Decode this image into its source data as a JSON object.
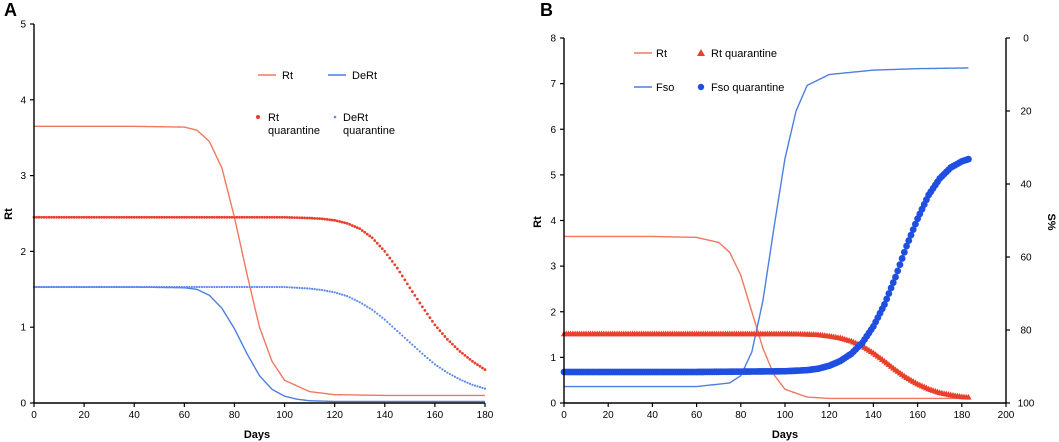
{
  "colors": {
    "red": "#f07860",
    "blue": "#4c7fe0",
    "red_dot": "#e8402a",
    "blue_dot": "#1f4fe0",
    "blue_small": "#5a8ae8"
  },
  "chart_data": [
    {
      "panel": "A",
      "type": "line",
      "xlabel": "Days",
      "ylabel": "Rt",
      "xlim": [
        0,
        180
      ],
      "ylim": [
        0,
        5
      ],
      "xticks": [
        0,
        20,
        40,
        60,
        80,
        100,
        120,
        140,
        160,
        180
      ],
      "yticks": [
        0,
        1,
        2,
        3,
        4,
        5
      ],
      "legend_position": "top-right",
      "series": [
        {
          "name": "Rt",
          "style": "line",
          "color": "red",
          "x": [
            0,
            40,
            60,
            65,
            70,
            75,
            80,
            85,
            90,
            95,
            100,
            110,
            120,
            140,
            160,
            180
          ],
          "y": [
            3.65,
            3.65,
            3.64,
            3.6,
            3.45,
            3.1,
            2.45,
            1.7,
            1.0,
            0.55,
            0.3,
            0.15,
            0.11,
            0.1,
            0.1,
            0.1
          ]
        },
        {
          "name": "DeRt",
          "style": "line",
          "color": "blue",
          "x": [
            0,
            40,
            60,
            65,
            70,
            75,
            80,
            85,
            90,
            95,
            100,
            105,
            110,
            120,
            140,
            160,
            180
          ],
          "y": [
            1.53,
            1.53,
            1.52,
            1.5,
            1.42,
            1.25,
            0.98,
            0.65,
            0.36,
            0.18,
            0.09,
            0.05,
            0.03,
            0.02,
            0.02,
            0.02,
            0.02
          ]
        },
        {
          "name": "Rt quarantine",
          "legend_label": [
            "Rt",
            "quarantine"
          ],
          "style": "dots",
          "color": "red_dot",
          "x": [
            0,
            60,
            100,
            110,
            115,
            120,
            125,
            130,
            135,
            140,
            145,
            150,
            155,
            160,
            165,
            170,
            175,
            180
          ],
          "y": [
            2.45,
            2.45,
            2.45,
            2.44,
            2.43,
            2.41,
            2.37,
            2.3,
            2.18,
            2.0,
            1.78,
            1.52,
            1.27,
            1.03,
            0.84,
            0.68,
            0.55,
            0.44
          ]
        },
        {
          "name": "DeRt quarantine",
          "legend_label": [
            "DeRt",
            "quarantine"
          ],
          "style": "dots",
          "color": "blue_small",
          "x": [
            0,
            80,
            100,
            105,
            110,
            115,
            120,
            125,
            130,
            135,
            140,
            145,
            150,
            155,
            160,
            165,
            170,
            175,
            180
          ],
          "y": [
            1.53,
            1.53,
            1.53,
            1.52,
            1.51,
            1.49,
            1.46,
            1.41,
            1.33,
            1.23,
            1.1,
            0.95,
            0.8,
            0.65,
            0.51,
            0.4,
            0.31,
            0.24,
            0.19
          ]
        }
      ]
    },
    {
      "panel": "B",
      "type": "line",
      "xlabel": "Days",
      "ylabel": "Rt",
      "y2label": "S%",
      "xlim": [
        0,
        200
      ],
      "ylim": [
        0,
        8
      ],
      "y2lim": [
        0,
        100
      ],
      "y2_inverted": true,
      "xticks": [
        0,
        20,
        40,
        60,
        80,
        100,
        120,
        140,
        160,
        180,
        200
      ],
      "yticks": [
        0,
        1,
        2,
        3,
        4,
        5,
        6,
        7,
        8
      ],
      "y2ticks": [
        0,
        20,
        40,
        60,
        80,
        100
      ],
      "legend_position": "top-left",
      "series": [
        {
          "name": "Rt",
          "style": "line",
          "color": "red",
          "axis": "left",
          "x": [
            0,
            40,
            60,
            70,
            75,
            80,
            85,
            90,
            95,
            100,
            110,
            120,
            140,
            160,
            183
          ],
          "y": [
            3.65,
            3.65,
            3.63,
            3.52,
            3.3,
            2.8,
            2.0,
            1.2,
            0.62,
            0.3,
            0.13,
            0.1,
            0.1,
            0.1,
            0.1
          ]
        },
        {
          "name": "Fso",
          "style": "line",
          "color": "blue",
          "axis": "right",
          "x": [
            0,
            60,
            75,
            80,
            85,
            90,
            95,
            100,
            105,
            110,
            120,
            140,
            160,
            183
          ],
          "y": [
            95.5,
            95.5,
            94.5,
            92.5,
            86,
            72,
            52,
            33,
            20,
            13,
            10,
            8.8,
            8.4,
            8.2
          ]
        },
        {
          "name": "Rt quarantine",
          "style": "triangles",
          "color": "red_dot",
          "axis": "left",
          "x": [
            0,
            60,
            100,
            110,
            115,
            120,
            125,
            130,
            135,
            140,
            145,
            150,
            155,
            160,
            165,
            170,
            175,
            180,
            183
          ],
          "y": [
            1.52,
            1.52,
            1.52,
            1.51,
            1.5,
            1.47,
            1.43,
            1.36,
            1.25,
            1.1,
            0.92,
            0.73,
            0.56,
            0.42,
            0.31,
            0.23,
            0.18,
            0.14,
            0.13
          ]
        },
        {
          "name": "Fso quarantine",
          "style": "dots",
          "color": "blue_dot",
          "axis": "right",
          "x": [
            0,
            60,
            100,
            110,
            115,
            120,
            125,
            130,
            135,
            140,
            145,
            150,
            155,
            160,
            165,
            170,
            175,
            180,
            183
          ],
          "y": [
            91.5,
            91.5,
            91.3,
            91,
            90.6,
            89.8,
            88.5,
            86.5,
            83.5,
            79,
            73,
            65.5,
            57,
            49.5,
            43,
            38.5,
            35.5,
            33.8,
            33.2
          ]
        }
      ]
    }
  ]
}
